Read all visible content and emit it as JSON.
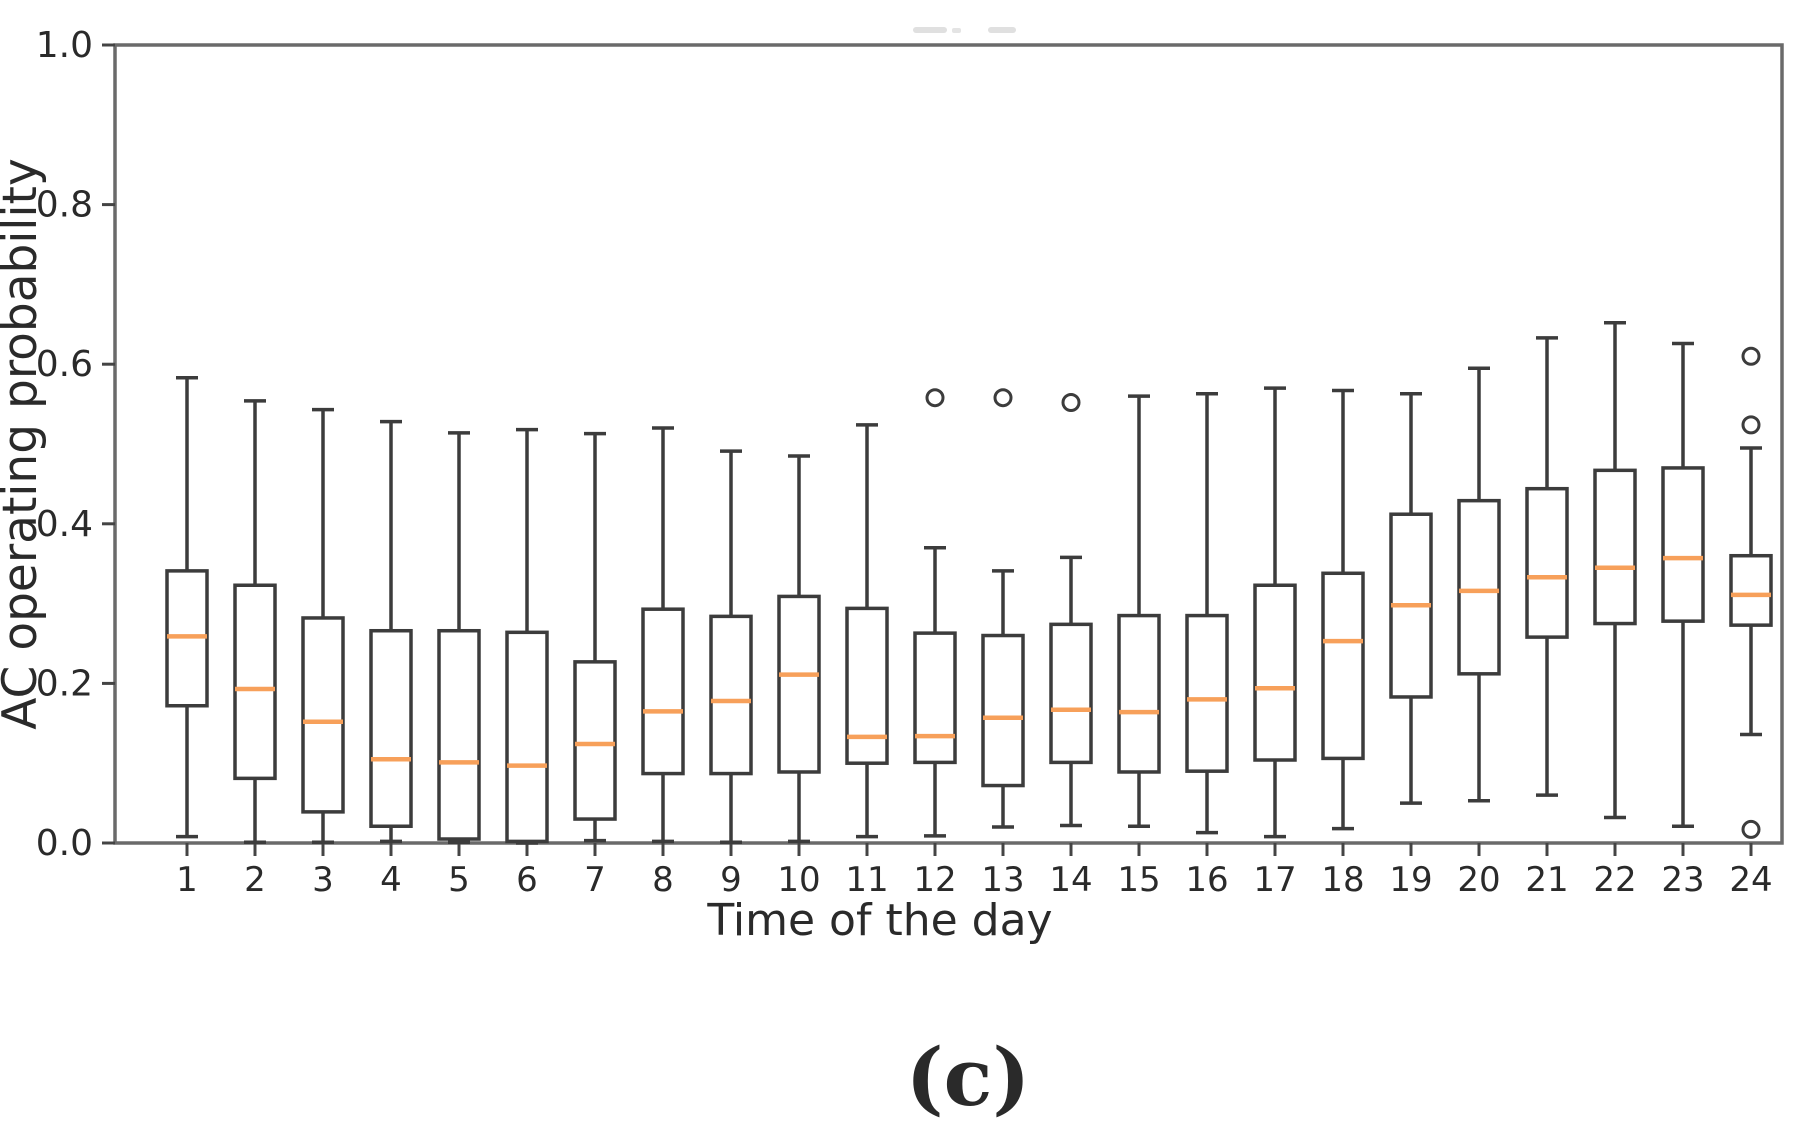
{
  "figure": {
    "caption": "(c)"
  },
  "chart_data": {
    "type": "boxplot",
    "title": "",
    "xlabel": "Time of the day",
    "ylabel": "AC operating probability",
    "ylim": [
      0.0,
      1.0
    ],
    "grid": false,
    "legend": "none",
    "yticks": [
      {
        "value": 0.0,
        "label": "0.0"
      },
      {
        "value": 0.2,
        "label": "0.2"
      },
      {
        "value": 0.4,
        "label": "0.4"
      },
      {
        "value": 0.6,
        "label": "0.6"
      },
      {
        "value": 0.8,
        "label": "0.8"
      },
      {
        "value": 1.0,
        "label": "1.0"
      }
    ],
    "categories": [
      "1",
      "2",
      "3",
      "4",
      "5",
      "6",
      "7",
      "8",
      "9",
      "10",
      "11",
      "12",
      "13",
      "14",
      "15",
      "16",
      "17",
      "18",
      "19",
      "20",
      "21",
      "22",
      "23",
      "24"
    ],
    "boxes": [
      {
        "whislo": 0.008,
        "q1": 0.172,
        "med": 0.259,
        "q3": 0.341,
        "whishi": 0.583,
        "fliers": []
      },
      {
        "whislo": 0.001,
        "q1": 0.081,
        "med": 0.193,
        "q3": 0.323,
        "whishi": 0.554,
        "fliers": []
      },
      {
        "whislo": 0.001,
        "q1": 0.039,
        "med": 0.152,
        "q3": 0.282,
        "whishi": 0.543,
        "fliers": []
      },
      {
        "whislo": 0.002,
        "q1": 0.021,
        "med": 0.105,
        "q3": 0.266,
        "whishi": 0.528,
        "fliers": []
      },
      {
        "whislo": 0.001,
        "q1": 0.005,
        "med": 0.101,
        "q3": 0.266,
        "whishi": 0.514,
        "fliers": []
      },
      {
        "whislo": 0.0,
        "q1": 0.002,
        "med": 0.097,
        "q3": 0.264,
        "whishi": 0.518,
        "fliers": []
      },
      {
        "whislo": 0.003,
        "q1": 0.03,
        "med": 0.124,
        "q3": 0.227,
        "whishi": 0.513,
        "fliers": []
      },
      {
        "whislo": 0.002,
        "q1": 0.087,
        "med": 0.165,
        "q3": 0.293,
        "whishi": 0.52,
        "fliers": []
      },
      {
        "whislo": 0.001,
        "q1": 0.087,
        "med": 0.178,
        "q3": 0.284,
        "whishi": 0.491,
        "fliers": []
      },
      {
        "whislo": 0.002,
        "q1": 0.089,
        "med": 0.211,
        "q3": 0.309,
        "whishi": 0.485,
        "fliers": []
      },
      {
        "whislo": 0.008,
        "q1": 0.1,
        "med": 0.133,
        "q3": 0.294,
        "whishi": 0.524,
        "fliers": []
      },
      {
        "whislo": 0.009,
        "q1": 0.101,
        "med": 0.134,
        "q3": 0.263,
        "whishi": 0.37,
        "fliers": [
          0.558
        ]
      },
      {
        "whislo": 0.02,
        "q1": 0.072,
        "med": 0.157,
        "q3": 0.26,
        "whishi": 0.341,
        "fliers": [
          0.558
        ]
      },
      {
        "whislo": 0.022,
        "q1": 0.101,
        "med": 0.167,
        "q3": 0.274,
        "whishi": 0.358,
        "fliers": [
          0.552
        ]
      },
      {
        "whislo": 0.021,
        "q1": 0.089,
        "med": 0.164,
        "q3": 0.285,
        "whishi": 0.56,
        "fliers": []
      },
      {
        "whislo": 0.013,
        "q1": 0.09,
        "med": 0.18,
        "q3": 0.285,
        "whishi": 0.563,
        "fliers": []
      },
      {
        "whislo": 0.008,
        "q1": 0.104,
        "med": 0.194,
        "q3": 0.323,
        "whishi": 0.57,
        "fliers": []
      },
      {
        "whislo": 0.018,
        "q1": 0.106,
        "med": 0.253,
        "q3": 0.338,
        "whishi": 0.567,
        "fliers": []
      },
      {
        "whislo": 0.05,
        "q1": 0.183,
        "med": 0.298,
        "q3": 0.412,
        "whishi": 0.563,
        "fliers": []
      },
      {
        "whislo": 0.053,
        "q1": 0.212,
        "med": 0.316,
        "q3": 0.429,
        "whishi": 0.595,
        "fliers": []
      },
      {
        "whislo": 0.06,
        "q1": 0.258,
        "med": 0.333,
        "q3": 0.444,
        "whishi": 0.633,
        "fliers": []
      },
      {
        "whislo": 0.032,
        "q1": 0.275,
        "med": 0.345,
        "q3": 0.467,
        "whishi": 0.652,
        "fliers": []
      },
      {
        "whislo": 0.021,
        "q1": 0.278,
        "med": 0.357,
        "q3": 0.47,
        "whishi": 0.626,
        "fliers": []
      },
      {
        "whislo": 0.136,
        "q1": 0.273,
        "med": 0.311,
        "q3": 0.36,
        "whishi": 0.495,
        "fliers": [
          0.61,
          0.524,
          0.017
        ]
      }
    ],
    "style": {
      "box_color": "#3c3c3c",
      "median_color": "#f7a05a",
      "spine_color": "#6a6a6a",
      "tick_color": "#444444",
      "text_color": "#2a2a2a"
    }
  }
}
